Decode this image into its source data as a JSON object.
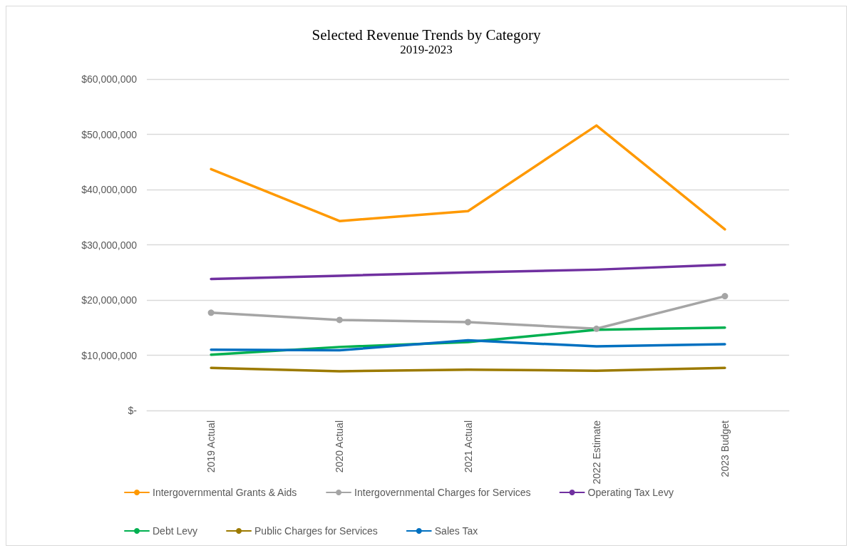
{
  "chart_data": {
    "type": "line",
    "title": "Selected Revenue Trends by Category",
    "subtitle": "2019-2023",
    "categories": [
      "2019 Actual",
      "2020 Actual",
      "2021 Actual",
      "2022 Estimate",
      "2023 Budget"
    ],
    "series": [
      {
        "name": "Intergovernmental Grants & Aids",
        "color": "#ff9900",
        "values": [
          43700000,
          34300000,
          36100000,
          51600000,
          32800000
        ]
      },
      {
        "name": "Intergovernmental Charges for Services",
        "color": "#a5a5a5",
        "marker": "circle",
        "values": [
          17700000,
          16400000,
          16000000,
          14800000,
          20700000
        ]
      },
      {
        "name": "Operating Tax Levy",
        "color": "#7030a0",
        "values": [
          23800000,
          24400000,
          25000000,
          25500000,
          26400000
        ]
      },
      {
        "name": "Debt Levy",
        "color": "#00b050",
        "values": [
          10100000,
          11500000,
          12400000,
          14600000,
          15000000
        ]
      },
      {
        "name": "Public Charges for Services",
        "color": "#9c7a00",
        "values": [
          7700000,
          7100000,
          7400000,
          7200000,
          7700000
        ]
      },
      {
        "name": "Sales Tax",
        "color": "#0070c0",
        "values": [
          11000000,
          10900000,
          12700000,
          11600000,
          12000000
        ]
      }
    ],
    "ylim": [
      0,
      60000000
    ],
    "yticks": [
      {
        "value": 0,
        "label": "$-"
      },
      {
        "value": 10000000,
        "label": "$10,000,000"
      },
      {
        "value": 20000000,
        "label": "$20,000,000"
      },
      {
        "value": 30000000,
        "label": "$30,000,000"
      },
      {
        "value": 40000000,
        "label": "$40,000,000"
      },
      {
        "value": 50000000,
        "label": "$50,000,000"
      },
      {
        "value": 60000000,
        "label": "$60,000,000"
      }
    ],
    "grid": "y",
    "legend": "bottom",
    "marker": "none",
    "line_style": "solid"
  }
}
